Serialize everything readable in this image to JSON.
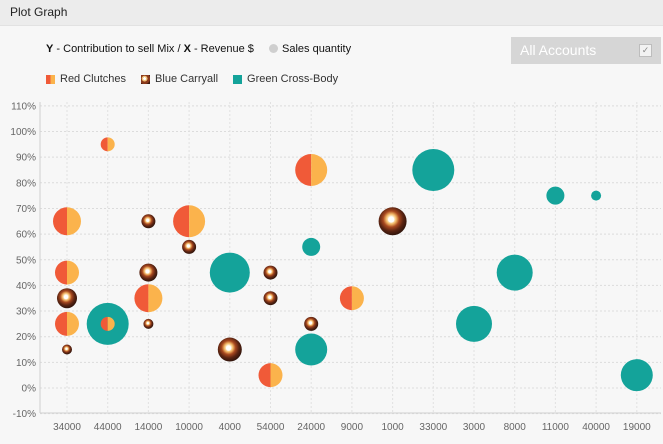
{
  "window": {
    "title": "Plot Graph"
  },
  "header": {
    "caption_y": "Y",
    "caption_mid": " - Contribution to sell Mix / ",
    "caption_x": "X",
    "caption_end": " - Revenue $",
    "size_label": "Sales quantity"
  },
  "account_selector": {
    "label": "All Accounts",
    "checked": true
  },
  "colors": {
    "red_left": "#f05a38",
    "red_right": "#fbb34c",
    "green": "#14a39a"
  },
  "chart_data": {
    "type": "scatter",
    "xlabel": "",
    "ylabel": "",
    "x_categories": [
      "34000",
      "44000",
      "14000",
      "10000",
      "4000",
      "54000",
      "24000",
      "9000",
      "1000",
      "33000",
      "3000",
      "8000",
      "11000",
      "40000",
      "19000"
    ],
    "y_ticks": [
      "-10%",
      "0%",
      "10%",
      "20%",
      "30%",
      "40%",
      "50%",
      "60%",
      "70%",
      "80%",
      "90%",
      "100%",
      "110%"
    ],
    "ylim": [
      -10,
      110
    ],
    "grid": true,
    "legend_position": "top-left",
    "series": [
      {
        "name": "Red Clutches",
        "style": "split-orange",
        "points": [
          {
            "x": "34000",
            "y": 65,
            "size": 14
          },
          {
            "x": "34000",
            "y": 45,
            "size": 12
          },
          {
            "x": "34000",
            "y": 25,
            "size": 12
          },
          {
            "x": "44000",
            "y": 95,
            "size": 7
          },
          {
            "x": "44000",
            "y": 25,
            "size": 7
          },
          {
            "x": "14000",
            "y": 35,
            "size": 14
          },
          {
            "x": "10000",
            "y": 65,
            "size": 16
          },
          {
            "x": "54000",
            "y": 5,
            "size": 12
          },
          {
            "x": "24000",
            "y": 85,
            "size": 16
          },
          {
            "x": "9000",
            "y": 35,
            "size": 12
          }
        ]
      },
      {
        "name": "Blue Carryall",
        "style": "flower",
        "points": [
          {
            "x": "34000",
            "y": 35,
            "size": 10
          },
          {
            "x": "34000",
            "y": 15,
            "size": 5
          },
          {
            "x": "14000",
            "y": 65,
            "size": 7
          },
          {
            "x": "14000",
            "y": 45,
            "size": 9
          },
          {
            "x": "14000",
            "y": 25,
            "size": 5
          },
          {
            "x": "10000",
            "y": 55,
            "size": 7
          },
          {
            "x": "4000",
            "y": 15,
            "size": 12
          },
          {
            "x": "54000",
            "y": 45,
            "size": 7
          },
          {
            "x": "54000",
            "y": 35,
            "size": 7
          },
          {
            "x": "24000",
            "y": 25,
            "size": 7
          },
          {
            "x": "1000",
            "y": 65,
            "size": 14
          }
        ]
      },
      {
        "name": "Green Cross-Body",
        "style": "solid",
        "points": [
          {
            "x": "44000",
            "y": 25,
            "size": 21
          },
          {
            "x": "4000",
            "y": 45,
            "size": 20
          },
          {
            "x": "24000",
            "y": 55,
            "size": 9
          },
          {
            "x": "24000",
            "y": 15,
            "size": 16
          },
          {
            "x": "33000",
            "y": 85,
            "size": 21
          },
          {
            "x": "3000",
            "y": 25,
            "size": 18
          },
          {
            "x": "8000",
            "y": 45,
            "size": 18
          },
          {
            "x": "11000",
            "y": 75,
            "size": 9
          },
          {
            "x": "40000",
            "y": 75,
            "size": 5
          },
          {
            "x": "19000",
            "y": 5,
            "size": 16
          }
        ]
      }
    ]
  }
}
